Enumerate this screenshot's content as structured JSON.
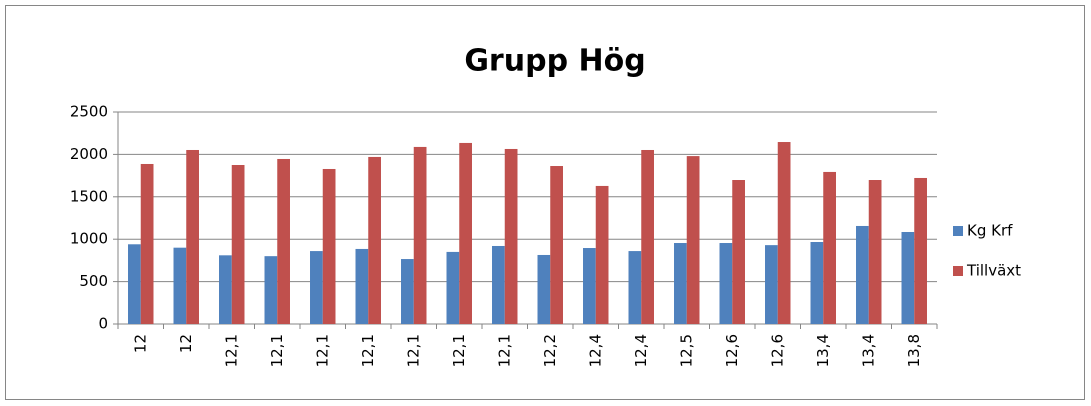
{
  "chart_data": {
    "type": "bar",
    "title": "Grupp Hög",
    "categories": [
      "12",
      "12",
      "12,1",
      "12,1",
      "12,1",
      "12,1",
      "12,1",
      "12,1",
      "12,1",
      "12,2",
      "12,4",
      "12,4",
      "12,5",
      "12,6",
      "12,6",
      "13,4",
      "13,4",
      "13,8"
    ],
    "series": [
      {
        "name": "Kg Krf",
        "color": "#4f81bd",
        "values": [
          940,
          900,
          810,
          800,
          860,
          885,
          766,
          850,
          920,
          814,
          896,
          860,
          955,
          955,
          930,
          967,
          1156,
          1085
        ]
      },
      {
        "name": "Tillväxt",
        "color": "#c0504d",
        "values": [
          1887,
          2052,
          1875,
          1946,
          1828,
          1970,
          2088,
          2135,
          2064,
          1863,
          1628,
          2052,
          1980,
          1698,
          2146,
          1793,
          1698,
          1722
        ]
      }
    ],
    "ylim": [
      0,
      2500
    ],
    "yticks": [
      0,
      500,
      1000,
      1500,
      2000,
      2500
    ],
    "grid": true,
    "legend": "right"
  }
}
